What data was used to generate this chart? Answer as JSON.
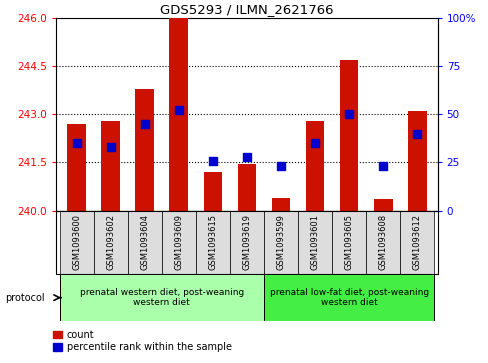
{
  "title": "GDS5293 / ILMN_2621766",
  "samples": [
    "GSM1093600",
    "GSM1093602",
    "GSM1093604",
    "GSM1093609",
    "GSM1093615",
    "GSM1093619",
    "GSM1093599",
    "GSM1093601",
    "GSM1093605",
    "GSM1093608",
    "GSM1093612"
  ],
  "bar_values": [
    242.7,
    242.8,
    243.8,
    246.0,
    241.2,
    241.45,
    240.4,
    242.8,
    244.7,
    240.35,
    243.1
  ],
  "percentile_values": [
    35,
    33,
    45,
    52,
    26,
    28,
    23,
    35,
    50,
    23,
    40
  ],
  "ylim_left": [
    240,
    246
  ],
  "ylim_right": [
    0,
    100
  ],
  "yticks_left": [
    240,
    241.5,
    243,
    244.5,
    246
  ],
  "yticks_right": [
    0,
    25,
    50,
    75,
    100
  ],
  "ytick_right_labels": [
    "0",
    "25",
    "50",
    "75",
    "100%"
  ],
  "bar_color": "#cc1100",
  "dot_color": "#0000cc",
  "group1_label": "prenatal western diet, post-weaning\nwestern diet",
  "group2_label": "prenatal low-fat diet, post-weaning\nwestern diet",
  "group1_indices": [
    0,
    1,
    2,
    3,
    4,
    5
  ],
  "group2_indices": [
    6,
    7,
    8,
    9,
    10
  ],
  "group1_bg": "#aaffaa",
  "group2_bg": "#44ee44",
  "sample_bg": "#dddddd",
  "legend_count_label": "count",
  "legend_percentile_label": "percentile rank within the sample",
  "protocol_label": "protocol"
}
